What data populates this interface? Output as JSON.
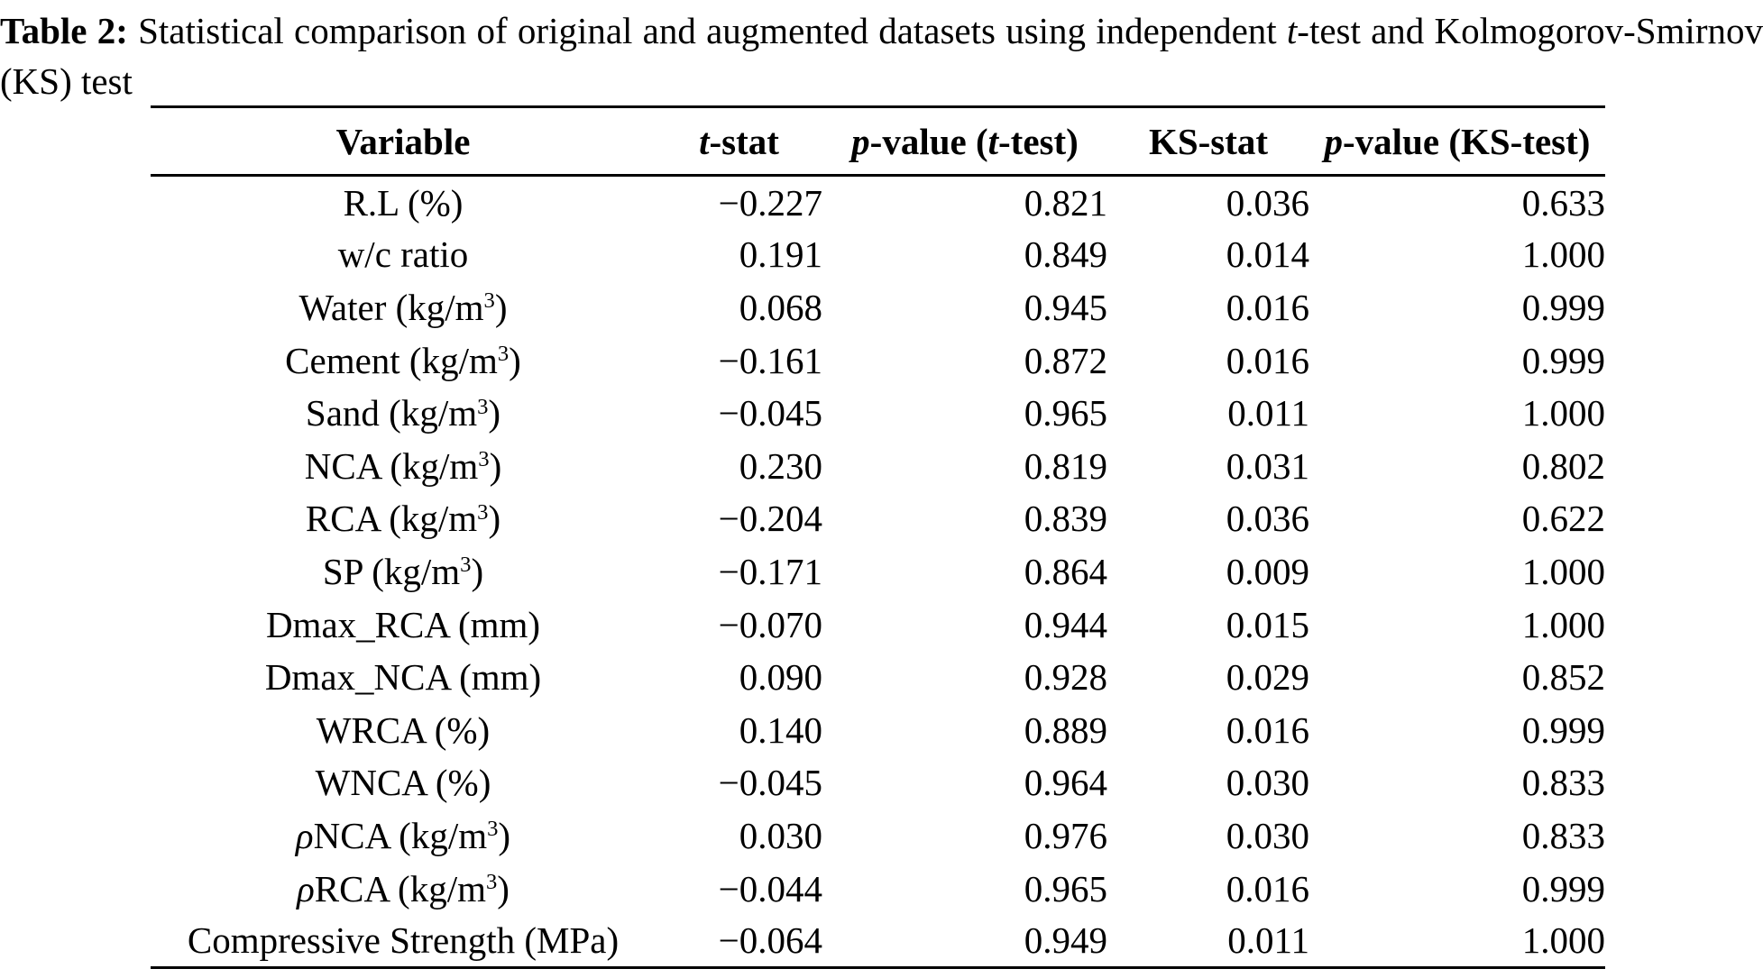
{
  "colors": {
    "text": "#000000",
    "background": "#ffffff"
  },
  "caption": {
    "label": "Table 2:",
    "before_italic": " Statistical comparison of original and augmented datasets using independent ",
    "italic": "t",
    "after_italic": "-test and Kolmogorov-Smirnov",
    "line2": "(KS) test"
  },
  "table": {
    "header": {
      "variable": "Variable",
      "t_stat": {
        "italic": "t",
        "rest": "-stat"
      },
      "p_t": {
        "italic1": "p",
        "mid": "-value (",
        "italic2": "t",
        "end": "-test)"
      },
      "ks_stat": "KS-stat",
      "p_ks": {
        "italic": "p",
        "rest": "-value (KS-test)"
      }
    },
    "rows": [
      {
        "var": {
          "pre": "R.L (%)"
        },
        "values": [
          "−0.227",
          "0.821",
          "0.036",
          "0.633"
        ]
      },
      {
        "var": {
          "pre": "w/c ratio"
        },
        "values": [
          "0.191",
          "0.849",
          "0.014",
          "1.000"
        ]
      },
      {
        "var": {
          "pre": "Water (kg/m",
          "sup": "3",
          "post": ")"
        },
        "values": [
          "0.068",
          "0.945",
          "0.016",
          "0.999"
        ]
      },
      {
        "var": {
          "pre": "Cement (kg/m",
          "sup": "3",
          "post": ")"
        },
        "values": [
          "−0.161",
          "0.872",
          "0.016",
          "0.999"
        ]
      },
      {
        "var": {
          "pre": "Sand (kg/m",
          "sup": "3",
          "post": ")"
        },
        "values": [
          "−0.045",
          "0.965",
          "0.011",
          "1.000"
        ]
      },
      {
        "var": {
          "pre": "NCA (kg/m",
          "sup": "3",
          "post": ")"
        },
        "values": [
          "0.230",
          "0.819",
          "0.031",
          "0.802"
        ]
      },
      {
        "var": {
          "pre": "RCA (kg/m",
          "sup": "3",
          "post": ")"
        },
        "values": [
          "−0.204",
          "0.839",
          "0.036",
          "0.622"
        ]
      },
      {
        "var": {
          "pre": "SP (kg/m",
          "sup": "3",
          "post": ")"
        },
        "values": [
          "−0.171",
          "0.864",
          "0.009",
          "1.000"
        ]
      },
      {
        "var": {
          "pre": "Dmax_RCA (mm)"
        },
        "values": [
          "−0.070",
          "0.944",
          "0.015",
          "1.000"
        ]
      },
      {
        "var": {
          "pre": "Dmax_NCA (mm)"
        },
        "values": [
          "0.090",
          "0.928",
          "0.029",
          "0.852"
        ]
      },
      {
        "var": {
          "pre": "WRCA (%)"
        },
        "values": [
          "0.140",
          "0.889",
          "0.016",
          "0.999"
        ]
      },
      {
        "var": {
          "pre": "WNCA (%)"
        },
        "values": [
          "−0.045",
          "0.964",
          "0.030",
          "0.833"
        ]
      },
      {
        "var": {
          "greek": "ρ",
          "pre": "NCA (kg/m",
          "sup": "3",
          "post": ")"
        },
        "values": [
          "0.030",
          "0.976",
          "0.030",
          "0.833"
        ]
      },
      {
        "var": {
          "greek": "ρ",
          "pre": "RCA (kg/m",
          "sup": "3",
          "post": ")"
        },
        "values": [
          "−0.044",
          "0.965",
          "0.016",
          "0.999"
        ]
      },
      {
        "var": {
          "pre": "Compressive Strength (MPa)"
        },
        "values": [
          "−0.064",
          "0.949",
          "0.011",
          "1.000"
        ]
      }
    ]
  }
}
